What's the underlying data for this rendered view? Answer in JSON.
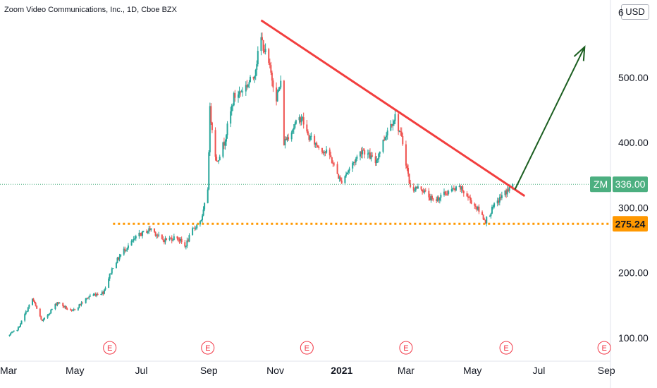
{
  "header": {
    "title": "Zoom Video Communications, Inc., 1D, Cboe BZX",
    "currency": "USD"
  },
  "colors": {
    "up": "#26a69a",
    "down": "#ef5350",
    "trendline": "#f23e3e",
    "support": "#ff9800",
    "arrow": "#1b5e20",
    "ticker_badge": "#4caf80",
    "price_badge": "#ff9800",
    "earnings": "#f23645"
  },
  "chart_data": {
    "type": "candlestick",
    "ticker": "ZM",
    "last_price": "336.00",
    "support_level": "275.24",
    "y_ticks": [
      "100.00",
      "200.00",
      "300.00",
      "400.00",
      "500.00",
      "6"
    ],
    "x_ticks": [
      "Mar",
      "May",
      "Jul",
      "Sep",
      "Nov",
      "2021",
      "Mar",
      "May",
      "Jul",
      "Sep"
    ],
    "ylim": [
      55,
      610
    ],
    "earnings_marker": "E",
    "earnings_dates": [
      "2020-06-02",
      "2020-08-31",
      "2020-11-30",
      "2021-03-01",
      "2021-06-01",
      "2021-08-30"
    ],
    "trendline": {
      "from": [
        "2020-10-19",
        588
      ],
      "to": [
        "2021-06-18",
        318
      ]
    },
    "projection_arrow": {
      "from": [
        "2021-06-09",
        328
      ],
      "to": [
        "2021-08-12",
        547
      ]
    },
    "price_path": [
      [
        "2020-03-01",
        103
      ],
      [
        "2020-03-10",
        115
      ],
      [
        "2020-03-23",
        160
      ],
      [
        "2020-04-01",
        125
      ],
      [
        "2020-04-15",
        155
      ],
      [
        "2020-04-28",
        140
      ],
      [
        "2020-05-15",
        165
      ],
      [
        "2020-05-27",
        170
      ],
      [
        "2020-06-05",
        210
      ],
      [
        "2020-06-15",
        235
      ],
      [
        "2020-06-29",
        258
      ],
      [
        "2020-07-10",
        268
      ],
      [
        "2020-07-20",
        250
      ],
      [
        "2020-08-03",
        255
      ],
      [
        "2020-08-10",
        240
      ],
      [
        "2020-08-17",
        265
      ],
      [
        "2020-08-26",
        285
      ],
      [
        "2020-08-31",
        330
      ],
      [
        "2020-09-02",
        450
      ],
      [
        "2020-09-08",
        370
      ],
      [
        "2020-09-15",
        400
      ],
      [
        "2020-09-24",
        470
      ],
      [
        "2020-10-01",
        480
      ],
      [
        "2020-10-12",
        500
      ],
      [
        "2020-10-19",
        560
      ],
      [
        "2020-10-26",
        520
      ],
      [
        "2020-11-02",
        470
      ],
      [
        "2020-11-06",
        490
      ],
      [
        "2020-11-09",
        400
      ],
      [
        "2020-11-16",
        420
      ],
      [
        "2020-11-25",
        440
      ],
      [
        "2020-12-01",
        410
      ],
      [
        "2020-12-10",
        395
      ],
      [
        "2020-12-21",
        380
      ],
      [
        "2020-12-31",
        340
      ],
      [
        "2021-01-08",
        360
      ],
      [
        "2021-01-20",
        390
      ],
      [
        "2021-02-01",
        370
      ],
      [
        "2021-02-12",
        420
      ],
      [
        "2021-02-19",
        440
      ],
      [
        "2021-02-26",
        400
      ],
      [
        "2021-03-05",
        330
      ],
      [
        "2021-03-15",
        330
      ],
      [
        "2021-03-26",
        310
      ],
      [
        "2021-04-09",
        325
      ],
      [
        "2021-04-20",
        330
      ],
      [
        "2021-05-05",
        300
      ],
      [
        "2021-05-13",
        280
      ],
      [
        "2021-05-20",
        300
      ],
      [
        "2021-05-28",
        318
      ],
      [
        "2021-06-08",
        336
      ]
    ]
  }
}
